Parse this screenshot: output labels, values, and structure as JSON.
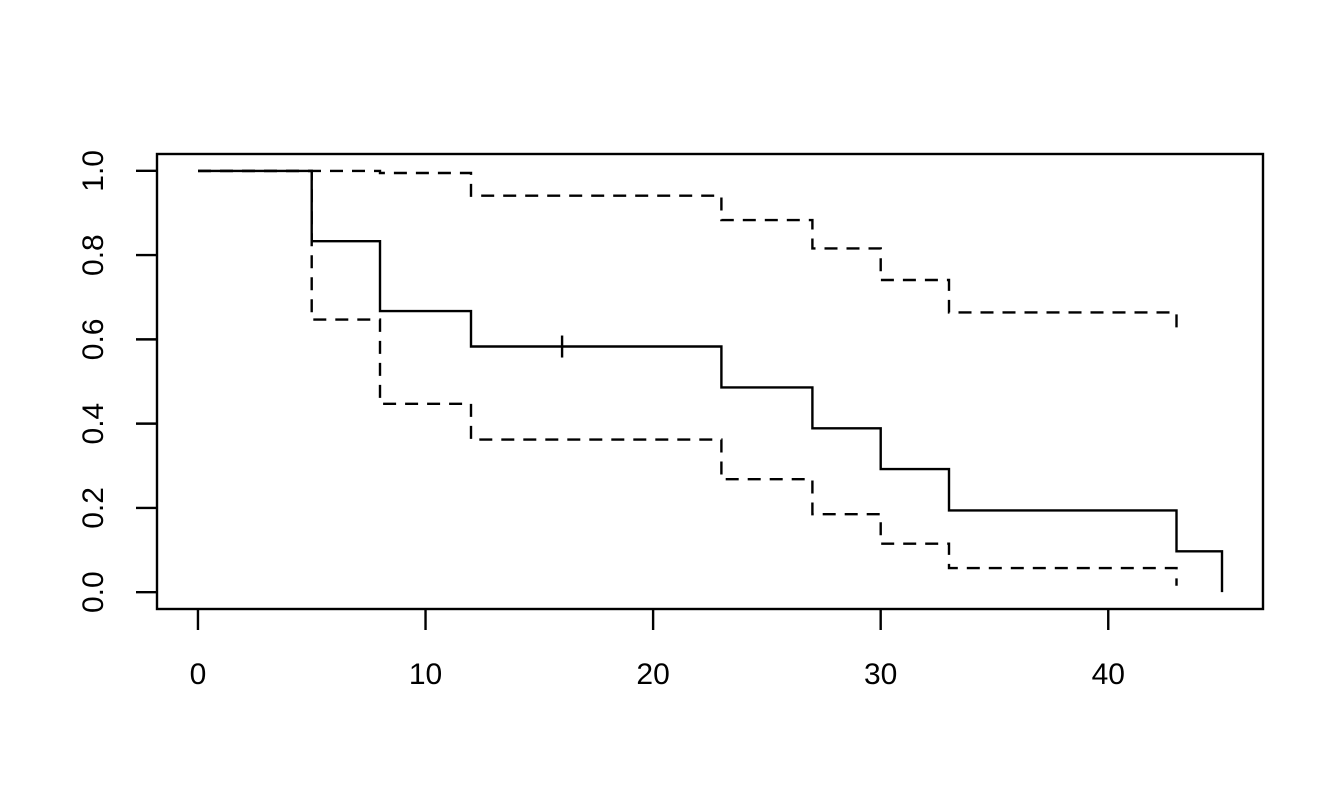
{
  "figure": {
    "background": "#ffffff",
    "foreground": "#000000"
  },
  "chart_data": {
    "type": "line",
    "subtype": "kaplan-meier-step",
    "title": "",
    "xlabel": "",
    "ylabel": "",
    "grid": false,
    "legend_position": "none",
    "xlim": [
      -1.8,
      46.8
    ],
    "ylim": [
      -0.04,
      1.04
    ],
    "x_ticks": [
      0,
      10,
      20,
      30,
      40
    ],
    "x_tick_labels": [
      "0",
      "10",
      "20",
      "30",
      "40"
    ],
    "y_ticks": [
      0.0,
      0.2,
      0.4,
      0.6,
      0.8,
      1.0
    ],
    "y_tick_labels": [
      "0.0",
      "0.2",
      "0.4",
      "0.6",
      "0.8",
      "1.0"
    ],
    "line_color": "#000000",
    "series": [
      {
        "name": "survival-estimate",
        "style": "solid",
        "times": [
          0,
          5,
          8,
          12,
          23,
          27,
          30,
          33,
          43,
          45
        ],
        "values": [
          1.0,
          0.833,
          0.667,
          0.583,
          0.486,
          0.389,
          0.292,
          0.194,
          0.097,
          0.0
        ]
      },
      {
        "name": "ci-upper",
        "style": "dashed",
        "times": [
          0,
          8,
          12,
          23,
          27,
          30,
          33,
          43
        ],
        "values": [
          1.0,
          0.995,
          0.941,
          0.883,
          0.816,
          0.741,
          0.664,
          0.62
        ]
      },
      {
        "name": "ci-lower",
        "style": "dashed",
        "times": [
          0,
          5,
          8,
          12,
          23,
          27,
          30,
          33,
          43
        ],
        "values": [
          1.0,
          0.647,
          0.447,
          0.362,
          0.268,
          0.185,
          0.115,
          0.057,
          0.015
        ]
      }
    ],
    "censor_marks": [
      {
        "time": 16,
        "surv": 0.583
      }
    ]
  }
}
